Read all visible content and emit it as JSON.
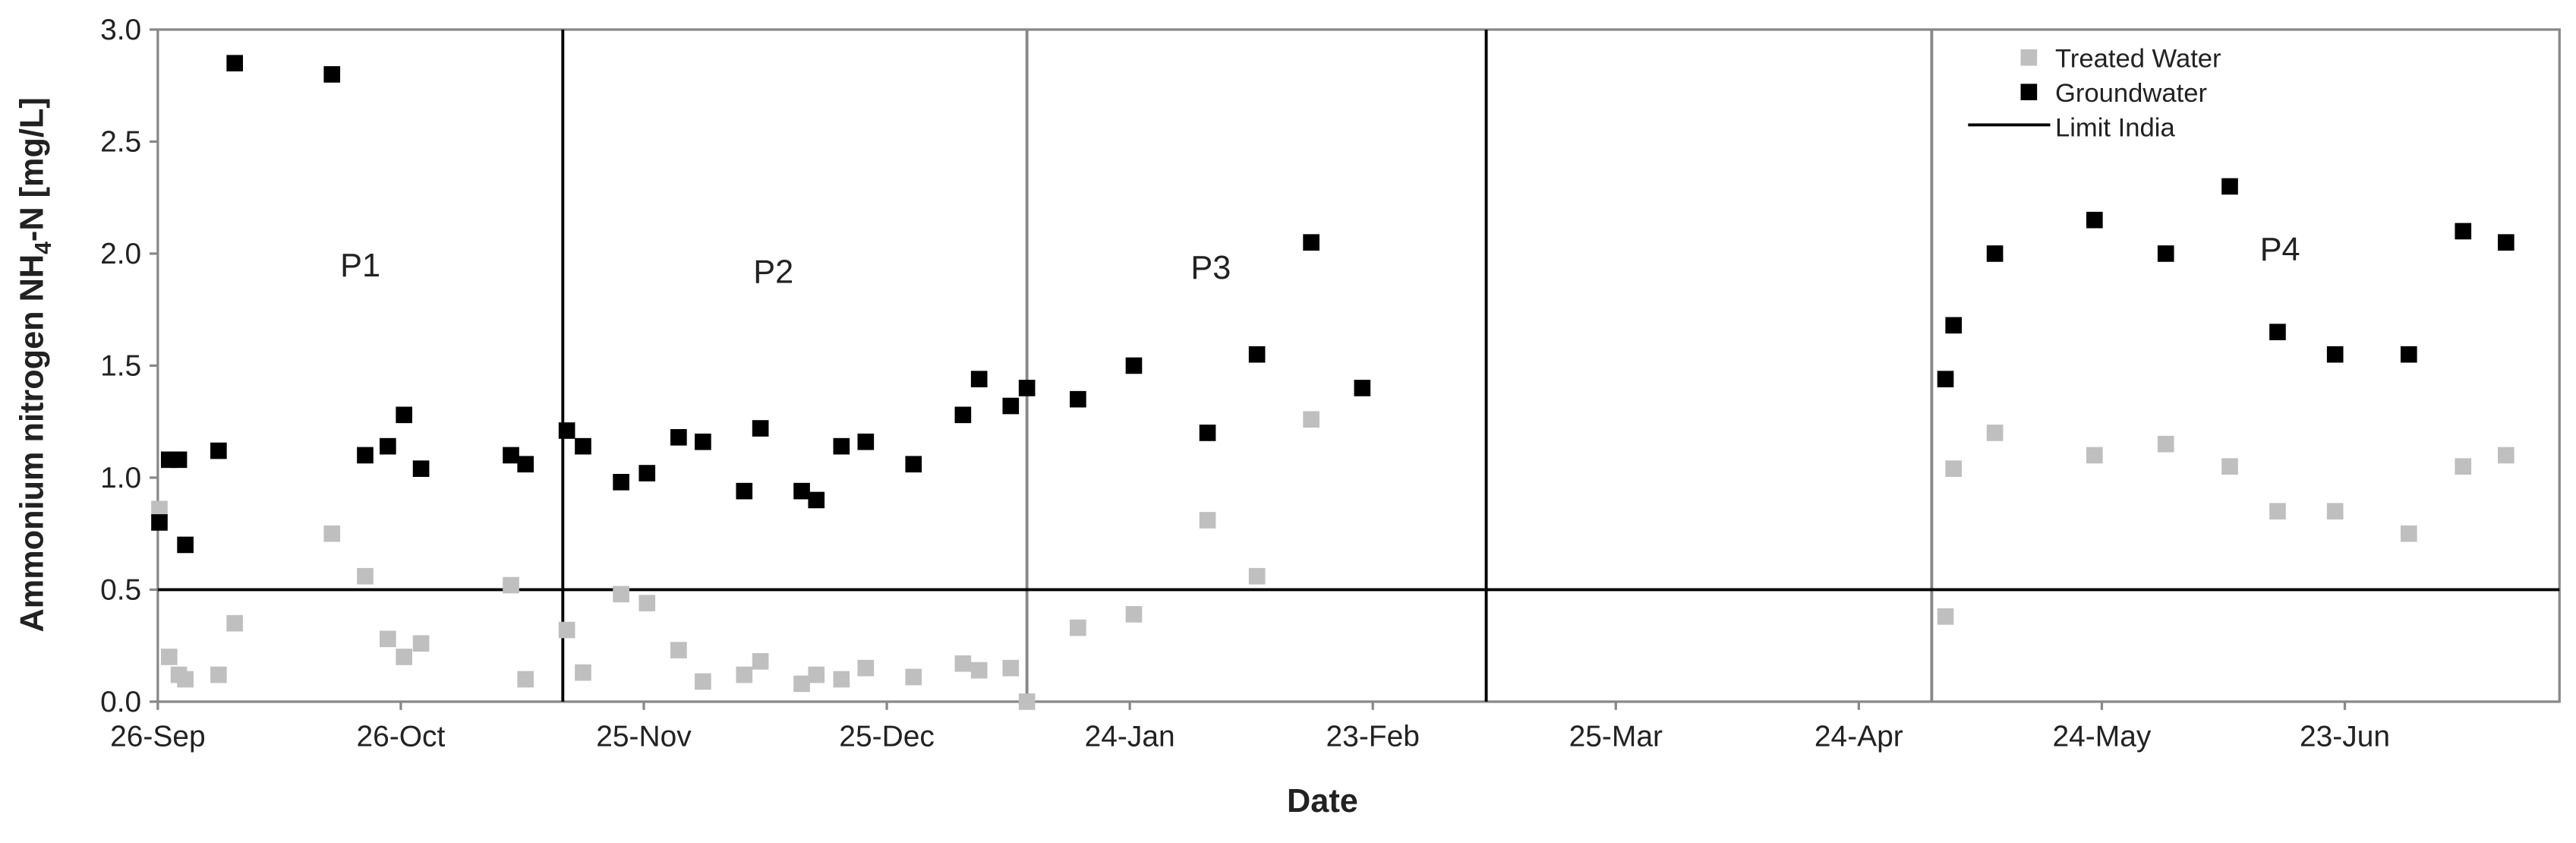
{
  "chart_data": {
    "type": "scatter",
    "xlabel": "Date",
    "ylabel_parts": [
      "Ammonium nitrogen NH",
      "4",
      "-N [mg/L]"
    ],
    "xlim": [
      0,
      296.5
    ],
    "ylim": [
      0,
      3.0
    ],
    "xticks": [
      {
        "value": 0,
        "label": "26-Sep"
      },
      {
        "value": 30,
        "label": "26-Oct"
      },
      {
        "value": 60,
        "label": "25-Nov"
      },
      {
        "value": 90,
        "label": "25-Dec"
      },
      {
        "value": 120,
        "label": "24-Jan"
      },
      {
        "value": 150,
        "label": "23-Feb"
      },
      {
        "value": 180,
        "label": "25-Mar"
      },
      {
        "value": 210,
        "label": "24-Apr"
      },
      {
        "value": 240,
        "label": "24-May"
      },
      {
        "value": 270,
        "label": "23-Jun"
      }
    ],
    "yticks": [
      {
        "value": 0,
        "label": "0.0"
      },
      {
        "value": 0.5,
        "label": "0.5"
      },
      {
        "value": 1.0,
        "label": "1.0"
      },
      {
        "value": 1.5,
        "label": "1.5"
      },
      {
        "value": 2.0,
        "label": "2.0"
      },
      {
        "value": 2.5,
        "label": "2.5"
      },
      {
        "value": 3.0,
        "label": "3.0"
      }
    ],
    "legend_position": "upper right",
    "series": [
      {
        "name": "Treated Water",
        "color": "#bfbfbf",
        "x": [
          0.2,
          1.4,
          2.6,
          3.4,
          7.5,
          9.5,
          21.5,
          25.6,
          28.4,
          30.4,
          32.5,
          43.6,
          45.4,
          50.5,
          52.5,
          57.2,
          60.4,
          64.3,
          67.3,
          72.4,
          74.4,
          79.5,
          81.3,
          84.4,
          87.4,
          93.3,
          99.4,
          101.4,
          105.3,
          107.3,
          113.6,
          120.5,
          129.6,
          135.7,
          142.4,
          220.7,
          221.7,
          226.8,
          239.1,
          247.9,
          255.8,
          261.7,
          268.8,
          277.9,
          284.6,
          289.9
        ],
        "values": [
          0.86,
          0.2,
          0.12,
          0.1,
          0.12,
          0.35,
          0.75,
          0.56,
          0.28,
          0.2,
          0.26,
          0.52,
          0.1,
          0.32,
          0.13,
          0.48,
          0.44,
          0.23,
          0.09,
          0.12,
          0.18,
          0.08,
          0.12,
          0.1,
          0.15,
          0.11,
          0.17,
          0.14,
          0.15,
          0.0,
          0.33,
          0.39,
          0.81,
          0.56,
          1.26,
          0.38,
          1.04,
          1.2,
          1.1,
          1.15,
          1.05,
          0.85,
          0.85,
          0.75,
          1.05,
          1.1
        ]
      },
      {
        "name": "Groundwater",
        "color": "#000000",
        "x": [
          0.2,
          1.4,
          2.6,
          3.4,
          7.5,
          9.5,
          21.5,
          25.6,
          28.4,
          30.4,
          32.5,
          43.6,
          45.4,
          50.5,
          52.5,
          57.2,
          60.4,
          64.3,
          67.3,
          72.4,
          74.4,
          79.5,
          81.3,
          84.4,
          87.4,
          93.3,
          99.4,
          101.4,
          105.3,
          107.3,
          113.6,
          120.5,
          129.6,
          135.7,
          142.4,
          148.7,
          220.7,
          221.7,
          226.8,
          239.1,
          247.9,
          255.8,
          261.7,
          268.8,
          277.9,
          284.6,
          289.9
        ],
        "values": [
          0.8,
          1.08,
          1.08,
          0.7,
          1.12,
          2.85,
          2.8,
          1.1,
          1.14,
          1.28,
          1.04,
          1.1,
          1.06,
          1.21,
          1.14,
          0.98,
          1.02,
          1.18,
          1.16,
          0.94,
          1.22,
          0.94,
          0.9,
          1.14,
          1.16,
          1.06,
          1.28,
          1.44,
          1.32,
          1.4,
          1.35,
          1.5,
          1.2,
          1.55,
          2.05,
          1.4,
          1.44,
          1.68,
          2.0,
          2.15,
          2.0,
          2.3,
          1.65,
          1.55,
          1.55,
          2.1,
          2.05
        ]
      }
    ],
    "limit": {
      "name": "Limit India",
      "value": 0.5,
      "color": "#000000"
    },
    "dividers": [
      {
        "x": 50,
        "color": "#000000"
      },
      {
        "x": 107.3,
        "color": "#888888"
      },
      {
        "x": 164,
        "color": "#000000"
      },
      {
        "x": 219,
        "color": "#888888"
      }
    ],
    "annotations": [
      {
        "text": "P1",
        "x": 25,
        "y": 1.95
      },
      {
        "text": "P2",
        "x": 76,
        "y": 1.92
      },
      {
        "text": "P3",
        "x": 130,
        "y": 1.94
      },
      {
        "text": "P4",
        "x": 262,
        "y": 2.02
      }
    ]
  }
}
